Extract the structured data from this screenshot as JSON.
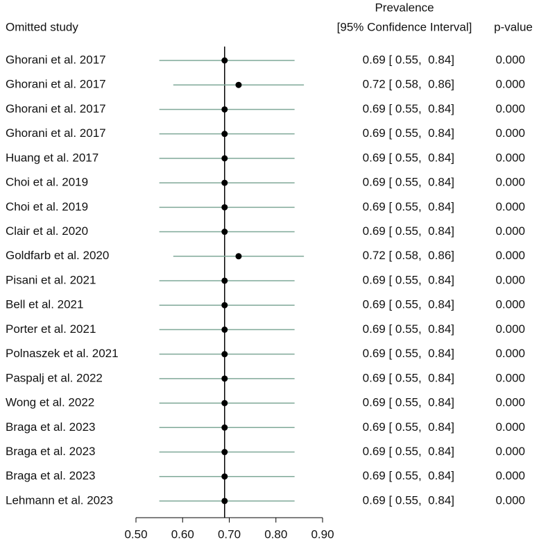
{
  "chart_data": {
    "type": "forest",
    "header_study": "Omitted study",
    "header_estimate_top": "Prevalence",
    "header_estimate": "[95% Confidence Interval]",
    "header_p": "p-value",
    "categories": [
      "Ghorani et al. 2017",
      "Ghorani et al. 2017",
      "Ghorani et al. 2017",
      "Ghorani et al. 2017",
      "Huang et al. 2017",
      "Choi et al. 2019",
      "Choi et al. 2019",
      "Clair et al. 2020",
      "Goldfarb et al. 2020",
      "Pisani et al. 2021",
      "Bell et al. 2021",
      "Porter et al. 2021",
      "Polnaszek et al. 2021",
      "Paspalj et al. 2022",
      "Wong et al. 2022",
      "Braga et al. 2023",
      "Braga et al. 2023",
      "Braga et al. 2023",
      "Lehmann et al. 2023"
    ],
    "values": [
      0.69,
      0.72,
      0.69,
      0.69,
      0.69,
      0.69,
      0.69,
      0.69,
      0.72,
      0.69,
      0.69,
      0.69,
      0.69,
      0.69,
      0.69,
      0.69,
      0.69,
      0.69,
      0.69
    ],
    "lower": [
      0.55,
      0.58,
      0.55,
      0.55,
      0.55,
      0.55,
      0.55,
      0.55,
      0.58,
      0.55,
      0.55,
      0.55,
      0.55,
      0.55,
      0.55,
      0.55,
      0.55,
      0.55,
      0.55
    ],
    "upper": [
      0.84,
      0.86,
      0.84,
      0.84,
      0.84,
      0.84,
      0.84,
      0.84,
      0.86,
      0.84,
      0.84,
      0.84,
      0.84,
      0.84,
      0.84,
      0.84,
      0.84,
      0.84,
      0.84
    ],
    "value_labels": [
      "0.69 [ 0.55,  0.84]",
      "0.72 [ 0.58,  0.86]",
      "0.69 [ 0.55,  0.84]",
      "0.69 [ 0.55,  0.84]",
      "0.69 [ 0.55,  0.84]",
      "0.69 [ 0.55,  0.84]",
      "0.69 [ 0.55,  0.84]",
      "0.69 [ 0.55,  0.84]",
      "0.72 [ 0.58,  0.86]",
      "0.69 [ 0.55,  0.84]",
      "0.69 [ 0.55,  0.84]",
      "0.69 [ 0.55,  0.84]",
      "0.69 [ 0.55,  0.84]",
      "0.69 [ 0.55,  0.84]",
      "0.69 [ 0.55,  0.84]",
      "0.69 [ 0.55,  0.84]",
      "0.69 [ 0.55,  0.84]",
      "0.69 [ 0.55,  0.84]",
      "0.69 [ 0.55,  0.84]"
    ],
    "p_values": [
      "0.000",
      "0.000",
      "0.000",
      "0.000",
      "0.000",
      "0.000",
      "0.000",
      "0.000",
      "0.000",
      "0.000",
      "0.000",
      "0.000",
      "0.000",
      "0.000",
      "0.000",
      "0.000",
      "0.000",
      "0.000",
      "0.000"
    ],
    "reference_line": 0.69,
    "ci_color": "#7fa898",
    "point_color": "#000000",
    "xlim": [
      0.5,
      0.9
    ],
    "xticks": [
      {
        "value": 0.5,
        "label": "0.50"
      },
      {
        "value": 0.6,
        "label": "0.60"
      },
      {
        "value": 0.7,
        "label": "0.70"
      },
      {
        "value": 0.8,
        "label": "0.80"
      },
      {
        "value": 0.9,
        "label": "0.90"
      }
    ]
  }
}
